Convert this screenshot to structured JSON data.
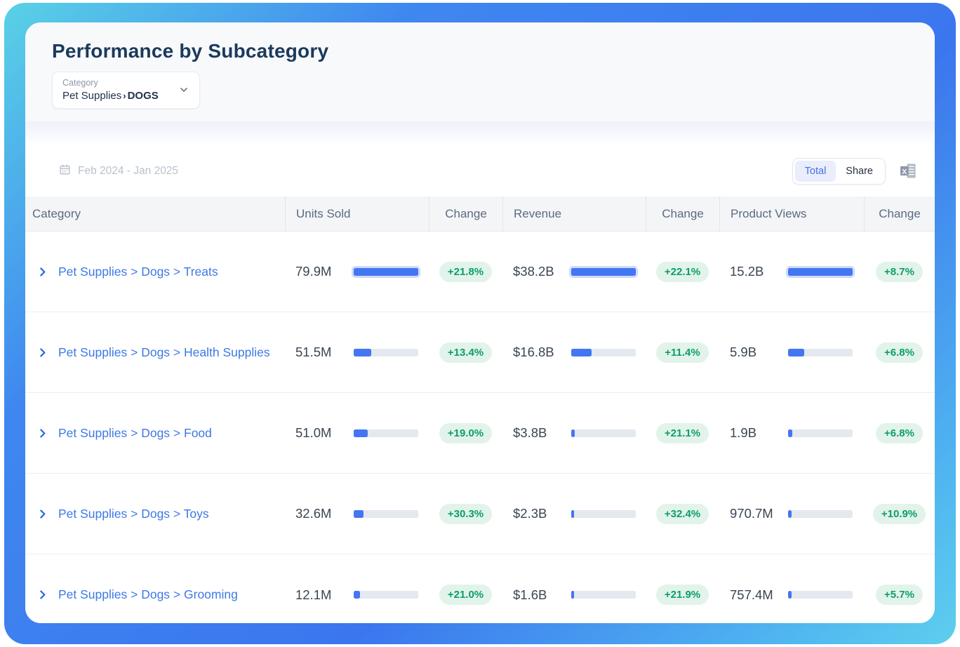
{
  "header": {
    "title": "Performance by Subcategory"
  },
  "category_filter": {
    "label": "Category",
    "path": "Pet Supplies",
    "separator": "›",
    "selected": "DOGS"
  },
  "toolbar": {
    "date_range": "Feb 2024 - Jan 2025",
    "view_toggle": {
      "options": [
        {
          "label": "Total",
          "active": true
        },
        {
          "label": "Share",
          "active": false
        }
      ]
    },
    "export_icon": "excel-export-icon"
  },
  "table": {
    "columns": [
      "Category",
      "Units Sold",
      "Change",
      "Revenue",
      "Change",
      "Product Views",
      "Change"
    ],
    "rows": [
      {
        "category": "Pet Supplies > Dogs > Treats",
        "units_sold": "79.9M",
        "units_bar_pct": 100,
        "units_change": "+21.8%",
        "revenue": "$38.2B",
        "revenue_bar_pct": 100,
        "revenue_change": "+22.1%",
        "product_views": "15.2B",
        "views_bar_pct": 100,
        "views_change": "+8.7%"
      },
      {
        "category": "Pet Supplies > Dogs > Health Supplies",
        "units_sold": "51.5M",
        "units_bar_pct": 27,
        "units_change": "+13.4%",
        "revenue": "$16.8B",
        "revenue_bar_pct": 32,
        "revenue_change": "+11.4%",
        "product_views": "5.9B",
        "views_bar_pct": 25,
        "views_change": "+6.8%"
      },
      {
        "category": "Pet Supplies > Dogs > Food",
        "units_sold": "51.0M",
        "units_bar_pct": 22,
        "units_change": "+19.0%",
        "revenue": "$3.8B",
        "revenue_bar_pct": 5,
        "revenue_change": "+21.1%",
        "product_views": "1.9B",
        "views_bar_pct": 6,
        "views_change": "+6.8%"
      },
      {
        "category": "Pet Supplies > Dogs > Toys",
        "units_sold": "32.6M",
        "units_bar_pct": 15,
        "units_change": "+30.3%",
        "revenue": "$2.3B",
        "revenue_bar_pct": 4,
        "revenue_change": "+32.4%",
        "product_views": "970.7M",
        "views_bar_pct": 5,
        "views_change": "+10.9%"
      },
      {
        "category": "Pet Supplies > Dogs > Grooming",
        "units_sold": "12.1M",
        "units_bar_pct": 10,
        "units_change": "+21.0%",
        "revenue": "$1.6B",
        "revenue_bar_pct": 4,
        "revenue_change": "+21.9%",
        "product_views": "757.4M",
        "views_bar_pct": 5,
        "views_change": "+5.7%"
      }
    ]
  },
  "colors": {
    "accent_blue": "#3d79e6",
    "bar_fill": "#4476f1",
    "badge_bg": "#e2f3ea",
    "badge_text": "#0b9e6d",
    "title_navy": "#1b3a5c",
    "frame_gradient_start": "#5ad2e6",
    "frame_gradient_mid": "#3b76ee"
  }
}
